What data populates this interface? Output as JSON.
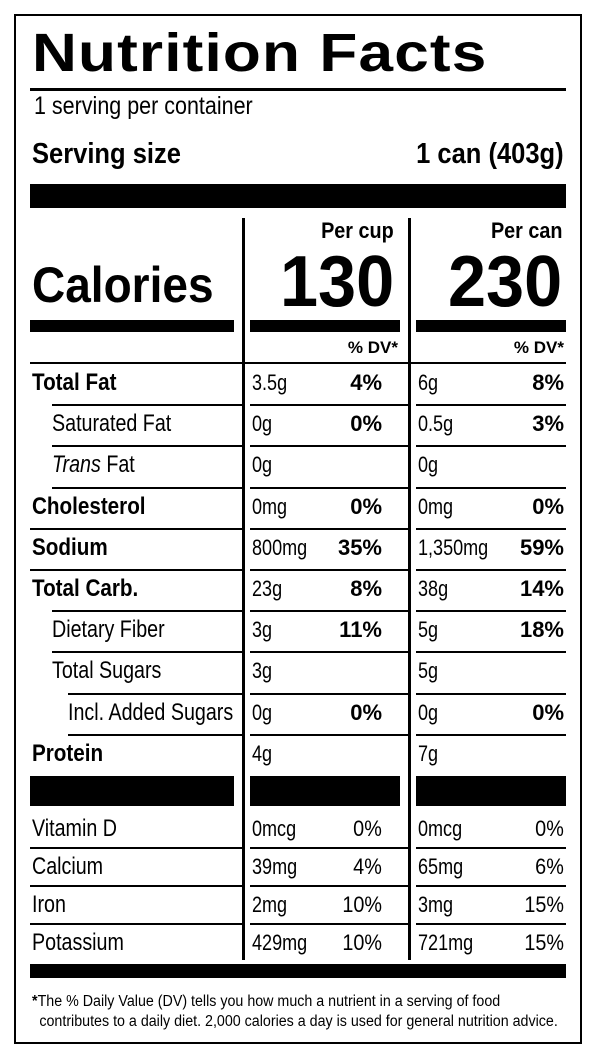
{
  "title": "Nutrition Facts",
  "servings_per_container": "1 serving per container",
  "serving_size": {
    "label": "Serving size",
    "value": "1 can (403g)"
  },
  "columns": [
    {
      "heading": "Per cup",
      "calories": "130",
      "dv_heading": "% DV*"
    },
    {
      "heading": "Per can",
      "calories": "230",
      "dv_heading": "% DV*"
    }
  ],
  "calories_label": "Calories",
  "nutrients": [
    {
      "name": "Total Fat",
      "style": "bold",
      "indent": 0,
      "cup": {
        "amount": "3.5g",
        "dv": "4%"
      },
      "can": {
        "amount": "6g",
        "dv": "8%"
      }
    },
    {
      "name": "Saturated Fat",
      "style": "normal",
      "indent": 1,
      "cup": {
        "amount": "0g",
        "dv": "0%"
      },
      "can": {
        "amount": "0.5g",
        "dv": "3%"
      }
    },
    {
      "name": "Trans Fat",
      "name_italic": "Trans",
      "name_rest": " Fat",
      "style": "normal",
      "indent": 1,
      "cup": {
        "amount": "0g",
        "dv": ""
      },
      "can": {
        "amount": "0g",
        "dv": ""
      }
    },
    {
      "name": "Cholesterol",
      "style": "bold",
      "indent": 0,
      "cup": {
        "amount": "0mg",
        "dv": "0%"
      },
      "can": {
        "amount": "0mg",
        "dv": "0%"
      }
    },
    {
      "name": "Sodium",
      "style": "bold",
      "indent": 0,
      "cup": {
        "amount": "800mg",
        "dv": "35%"
      },
      "can": {
        "amount": "1,350mg",
        "dv": "59%"
      }
    },
    {
      "name": "Total Carb.",
      "style": "bold",
      "indent": 0,
      "cup": {
        "amount": "23g",
        "dv": "8%"
      },
      "can": {
        "amount": "38g",
        "dv": "14%"
      }
    },
    {
      "name": "Dietary Fiber",
      "style": "normal",
      "indent": 1,
      "cup": {
        "amount": "3g",
        "dv": "11%"
      },
      "can": {
        "amount": "5g",
        "dv": "18%"
      }
    },
    {
      "name": "Total Sugars",
      "style": "normal",
      "indent": 1,
      "cup": {
        "amount": "3g",
        "dv": ""
      },
      "can": {
        "amount": "5g",
        "dv": ""
      }
    },
    {
      "name": "Incl. Added Sugars",
      "style": "normal",
      "indent": 2,
      "cup": {
        "amount": "0g",
        "dv": "0%"
      },
      "can": {
        "amount": "0g",
        "dv": "0%"
      }
    },
    {
      "name": "Protein",
      "style": "bold",
      "indent": 0,
      "cup": {
        "amount": "4g",
        "dv": ""
      },
      "can": {
        "amount": "7g",
        "dv": ""
      }
    }
  ],
  "vitamins": [
    {
      "name": "Vitamin D",
      "cup": {
        "amount": "0mcg",
        "dv": "0%"
      },
      "can": {
        "amount": "0mcg",
        "dv": "0%"
      }
    },
    {
      "name": "Calcium",
      "cup": {
        "amount": "39mg",
        "dv": "4%"
      },
      "can": {
        "amount": "65mg",
        "dv": "6%"
      }
    },
    {
      "name": "Iron",
      "cup": {
        "amount": "2mg",
        "dv": "10%"
      },
      "can": {
        "amount": "3mg",
        "dv": "15%"
      }
    },
    {
      "name": "Potassium",
      "cup": {
        "amount": "429mg",
        "dv": "10%"
      },
      "can": {
        "amount": "721mg",
        "dv": "15%"
      }
    }
  ],
  "footnote": {
    "star": "*",
    "line1": "The % Daily Value (DV) tells you how much a nutrient in a serving of food",
    "line2": "contributes to a daily diet. 2,000 calories a day is used for general nutrition advice."
  }
}
